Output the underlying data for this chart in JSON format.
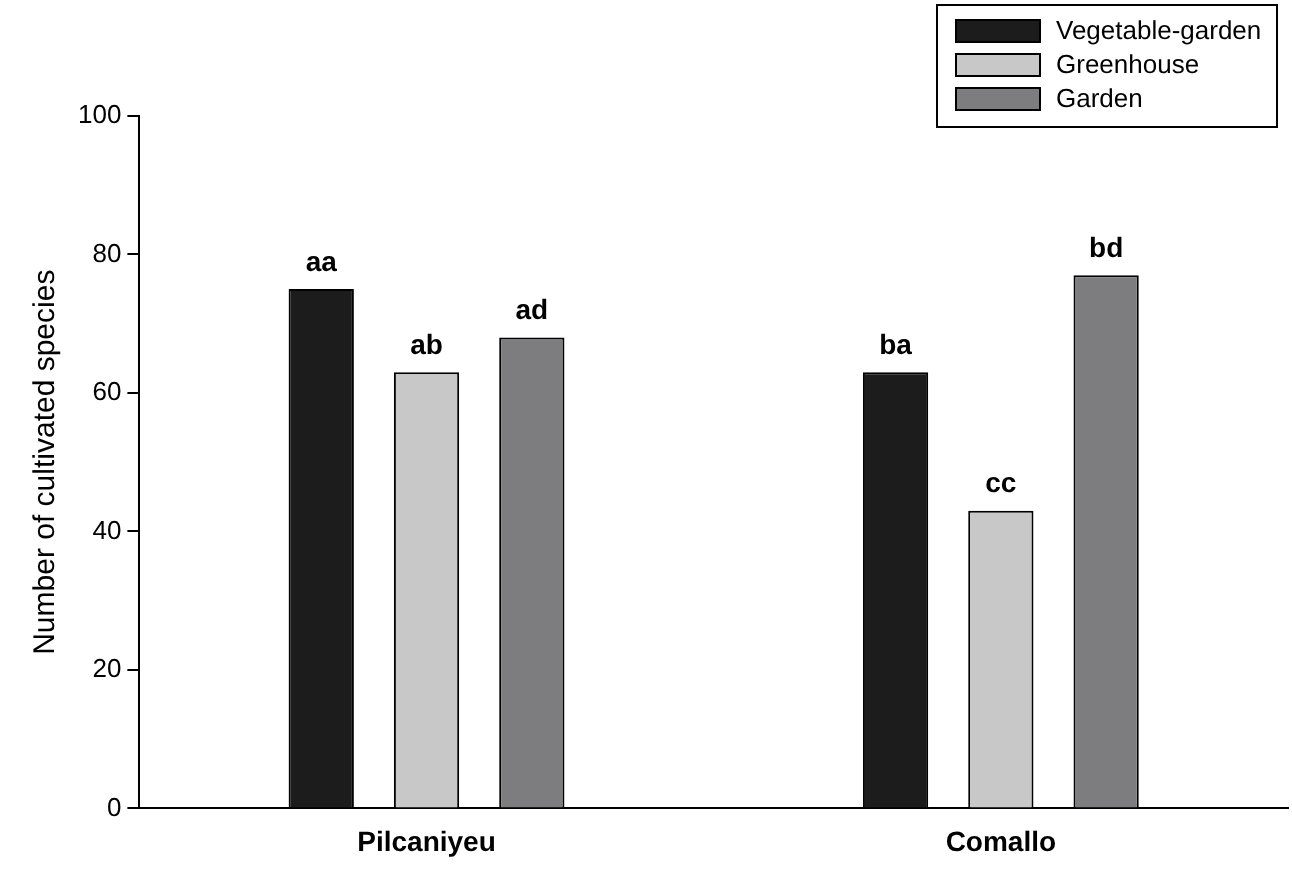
{
  "chart_data": {
    "type": "bar",
    "ylabel": "Number of cultivated species",
    "categories": [
      "Pilcaniyeu",
      "Comallo"
    ],
    "series": [
      {
        "name": "Vegetable-garden",
        "color": "#1c1c1c",
        "values": [
          75,
          63
        ],
        "value_labels": [
          "aa",
          "ba"
        ]
      },
      {
        "name": "Greenhouse",
        "color": "#c8c8c8",
        "values": [
          63,
          43
        ],
        "value_labels": [
          "ab",
          "cc"
        ]
      },
      {
        "name": "Garden",
        "color": "#7d7d7f",
        "values": [
          68,
          77
        ],
        "value_labels": [
          "ad",
          "bd"
        ]
      }
    ],
    "ylim": [
      0,
      100
    ],
    "yticks": [
      0,
      20,
      40,
      60,
      80,
      100
    ],
    "grid": false,
    "legend": "top right"
  }
}
